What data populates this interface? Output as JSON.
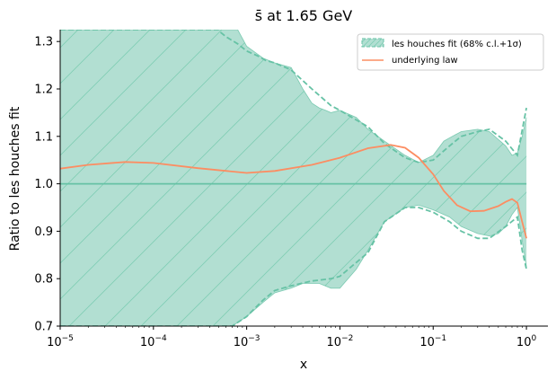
{
  "chart_data": {
    "type": "line",
    "title": "s̄ at 1.65 GeV",
    "xlabel": "x",
    "ylabel": "Ratio to les houches fit",
    "x_scale": "log",
    "xlim": [
      1e-05,
      1.7
    ],
    "ylim": [
      0.7,
      1.325
    ],
    "grid": false,
    "legend_position": "top-right",
    "x_ticks": [
      {
        "value": 1e-05,
        "base": "10",
        "exp": "−5"
      },
      {
        "value": 0.0001,
        "base": "10",
        "exp": "−4"
      },
      {
        "value": 0.001,
        "base": "10",
        "exp": "−3"
      },
      {
        "value": 0.01,
        "base": "10",
        "exp": "−2"
      },
      {
        "value": 0.1,
        "base": "10",
        "exp": "−1"
      },
      {
        "value": 1,
        "base": "10",
        "exp": "0"
      }
    ],
    "y_ticks": [
      {
        "value": 0.7,
        "label": "0.7"
      },
      {
        "value": 0.8,
        "label": "0.8"
      },
      {
        "value": 0.9,
        "label": "0.9"
      },
      {
        "value": 1.0,
        "label": "1.0"
      },
      {
        "value": 1.1,
        "label": "1.1"
      },
      {
        "value": 1.2,
        "label": "1.2"
      },
      {
        "value": 1.3,
        "label": "1.3"
      }
    ],
    "colors": {
      "fit": "#66c2a5",
      "fit_fill": "#b2dfd2",
      "law": "#fc8d62"
    },
    "series": [
      {
        "name": "les houches fit (68% c.l.+1σ)",
        "kind": "central",
        "x": [
          1e-05,
          1
        ],
        "y": [
          1.0,
          1.0
        ]
      },
      {
        "kind": "band_upper",
        "x": [
          1e-05,
          2e-05,
          0.0001,
          0.0003,
          0.0005,
          0.0006,
          0.0008,
          0.001,
          0.0015,
          0.002,
          0.003,
          0.004,
          0.005,
          0.006,
          0.007,
          0.008,
          0.01,
          0.015,
          0.02,
          0.03,
          0.05,
          0.07,
          0.1,
          0.13,
          0.16,
          0.2,
          0.3,
          0.4,
          0.6,
          0.7,
          0.8,
          0.9,
          1.0
        ],
        "y": [
          1.325,
          1.325,
          1.325,
          1.325,
          1.325,
          1.325,
          1.325,
          1.29,
          1.265,
          1.255,
          1.245,
          1.2,
          1.17,
          1.16,
          1.155,
          1.15,
          1.155,
          1.14,
          1.115,
          1.09,
          1.06,
          1.045,
          1.06,
          1.09,
          1.1,
          1.11,
          1.115,
          1.11,
          1.08,
          1.06,
          1.065,
          1.1,
          1.14
        ]
      },
      {
        "kind": "band_lower",
        "x": [
          1e-05,
          0.0001,
          0.0003,
          0.0005,
          0.0007,
          0.001,
          0.0015,
          0.002,
          0.003,
          0.004,
          0.006,
          0.008,
          0.01,
          0.015,
          0.02,
          0.03,
          0.05,
          0.07,
          0.1,
          0.15,
          0.2,
          0.3,
          0.4,
          0.5,
          0.6,
          0.7,
          0.8,
          0.9,
          1.0
        ],
        "y": [
          0.7,
          0.7,
          0.7,
          0.7,
          0.7,
          0.72,
          0.75,
          0.77,
          0.78,
          0.79,
          0.79,
          0.78,
          0.78,
          0.82,
          0.86,
          0.92,
          0.95,
          0.955,
          0.945,
          0.93,
          0.91,
          0.895,
          0.89,
          0.895,
          0.91,
          0.935,
          0.95,
          0.88,
          0.825
        ]
      },
      {
        "kind": "dashed_upper",
        "x": [
          1e-05,
          0.0005,
          0.00052,
          0.0006,
          0.0008,
          0.001,
          0.0013,
          0.0016,
          0.002,
          0.003,
          0.005,
          0.008,
          0.01,
          0.02,
          0.03,
          0.05,
          0.07,
          0.1,
          0.15,
          0.2,
          0.3,
          0.4,
          0.6,
          0.8,
          1.0
        ],
        "y": [
          1.325,
          1.325,
          1.32,
          1.31,
          1.295,
          1.28,
          1.27,
          1.26,
          1.255,
          1.24,
          1.2,
          1.165,
          1.155,
          1.12,
          1.085,
          1.055,
          1.045,
          1.05,
          1.08,
          1.1,
          1.11,
          1.115,
          1.09,
          1.06,
          1.16
        ]
      },
      {
        "kind": "dashed_lower",
        "x": [
          1e-05,
          0.0007,
          0.001,
          0.0015,
          0.002,
          0.003,
          0.005,
          0.008,
          0.01,
          0.02,
          0.03,
          0.05,
          0.07,
          0.1,
          0.15,
          0.2,
          0.3,
          0.4,
          0.6,
          0.8,
          0.9,
          1.0
        ],
        "y": [
          0.7,
          0.7,
          0.72,
          0.755,
          0.775,
          0.785,
          0.795,
          0.8,
          0.805,
          0.855,
          0.92,
          0.95,
          0.95,
          0.94,
          0.92,
          0.9,
          0.885,
          0.885,
          0.91,
          0.93,
          0.86,
          0.82
        ]
      },
      {
        "name": "underlying law",
        "kind": "law",
        "x": [
          1e-05,
          2e-05,
          5e-05,
          0.0001,
          0.0003,
          0.001,
          0.002,
          0.005,
          0.01,
          0.02,
          0.035,
          0.05,
          0.07,
          0.1,
          0.13,
          0.18,
          0.25,
          0.35,
          0.5,
          0.6,
          0.7,
          0.8,
          0.9,
          1.0
        ],
        "y": [
          1.032,
          1.04,
          1.046,
          1.044,
          1.033,
          1.023,
          1.027,
          1.04,
          1.055,
          1.075,
          1.082,
          1.076,
          1.055,
          1.02,
          0.985,
          0.955,
          0.942,
          0.943,
          0.953,
          0.962,
          0.968,
          0.96,
          0.92,
          0.885
        ]
      }
    ]
  }
}
